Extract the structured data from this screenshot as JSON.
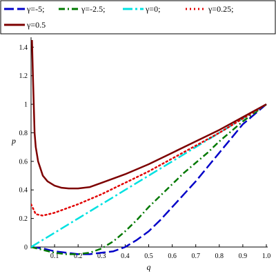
{
  "chart_data": {
    "type": "line",
    "title": "",
    "xlabel": "q",
    "ylabel": "p",
    "xlim": [
      0,
      1
    ],
    "ylim": [
      0,
      1.45
    ],
    "xticks": [
      "0.1",
      "0.2",
      "0.3",
      "0.4",
      "0.5",
      "0.6",
      "0.7",
      "0.8",
      "0.9",
      "1.0"
    ],
    "xtick_values": [
      0.1,
      0.2,
      0.3,
      0.4,
      0.5,
      0.6,
      0.7,
      0.8,
      0.9,
      1.0
    ],
    "yticks": [
      "0",
      "0.2",
      "0.4",
      "0.6",
      "0.8",
      "1",
      "1.2",
      "1.4"
    ],
    "ytick_values": [
      0,
      0.2,
      0.4,
      0.6,
      0.8,
      1.0,
      1.2,
      1.4
    ],
    "grid": false,
    "legend_placement": "top",
    "series": [
      {
        "name": "γ=-5;",
        "color": "#0000c8",
        "dash": "long-dash",
        "x": [
          0,
          0.05,
          0.1,
          0.15,
          0.2,
          0.25,
          0.3,
          0.35,
          0.4,
          0.45,
          0.5,
          0.55,
          0.6,
          0.65,
          0.7,
          0.75,
          0.8,
          0.85,
          0.9,
          0.95,
          1.0
        ],
        "y": [
          0,
          -0.01,
          -0.03,
          -0.04,
          -0.05,
          -0.05,
          -0.04,
          -0.03,
          0.0,
          0.05,
          0.11,
          0.19,
          0.28,
          0.37,
          0.46,
          0.56,
          0.66,
          0.76,
          0.86,
          0.93,
          1.0
        ]
      },
      {
        "name": "γ=-2.5;",
        "color": "#007800",
        "dash": "dash-dot",
        "x": [
          0,
          0.05,
          0.1,
          0.15,
          0.2,
          0.25,
          0.3,
          0.35,
          0.4,
          0.45,
          0.5,
          0.55,
          0.6,
          0.65,
          0.7,
          0.75,
          0.8,
          0.85,
          0.9,
          0.95,
          1.0
        ],
        "y": [
          0,
          -0.02,
          -0.04,
          -0.05,
          -0.05,
          -0.04,
          -0.01,
          0.04,
          0.11,
          0.19,
          0.28,
          0.36,
          0.44,
          0.52,
          0.59,
          0.66,
          0.74,
          0.81,
          0.88,
          0.94,
          1.0
        ]
      },
      {
        "name": "γ=0;",
        "color": "#00e1e1",
        "dash": "long-dash-dot",
        "x": [
          0,
          0.1,
          0.2,
          0.3,
          0.4,
          0.5,
          0.6,
          0.7,
          0.8,
          0.9,
          1.0
        ],
        "y": [
          0,
          0.1,
          0.2,
          0.3,
          0.4,
          0.5,
          0.6,
          0.7,
          0.8,
          0.9,
          1.0
        ]
      },
      {
        "name": "γ=0.25;",
        "color": "#e10000",
        "dash": "dotted",
        "x": [
          0,
          0.02,
          0.05,
          0.1,
          0.15,
          0.2,
          0.3,
          0.4,
          0.5,
          0.6,
          0.7,
          0.8,
          0.9,
          1.0
        ],
        "y": [
          0.3,
          0.23,
          0.22,
          0.24,
          0.27,
          0.3,
          0.37,
          0.45,
          0.53,
          0.62,
          0.71,
          0.8,
          0.9,
          1.0
        ]
      },
      {
        "name": "γ=0.5",
        "color": "#7d0000",
        "dash": "solid",
        "x": [
          0.004,
          0.008,
          0.015,
          0.02,
          0.03,
          0.05,
          0.07,
          0.1,
          0.13,
          0.16,
          0.2,
          0.25,
          0.3,
          0.4,
          0.5,
          0.6,
          0.7,
          0.8,
          0.9,
          1.0
        ],
        "y": [
          1.45,
          1.2,
          0.8,
          0.7,
          0.6,
          0.5,
          0.46,
          0.43,
          0.415,
          0.41,
          0.41,
          0.42,
          0.45,
          0.51,
          0.58,
          0.66,
          0.74,
          0.82,
          0.91,
          1.0
        ]
      }
    ]
  }
}
